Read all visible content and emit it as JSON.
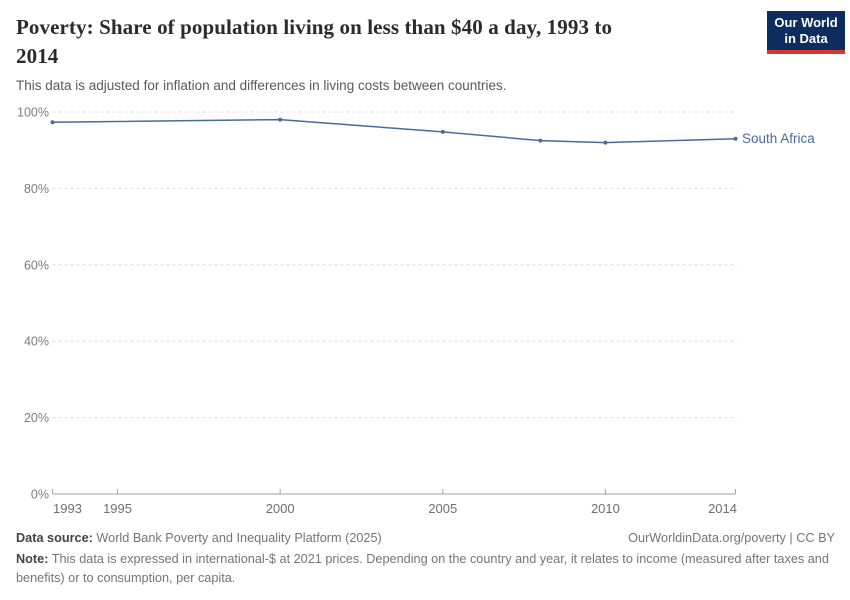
{
  "header": {
    "title": "Poverty: Share of population living on less than $40 a day, 1993 to\n2014",
    "subtitle": "This data is adjusted for inflation and differences in living costs between countries.",
    "logo": {
      "line1": "Our World",
      "line2": "in Data",
      "bg_color": "#0c2d5e",
      "accent_color": "#d9362e"
    }
  },
  "chart_data": {
    "type": "line",
    "title": "Poverty: Share of population living on less than $40 a day, 1993 to 2014",
    "xlabel": "",
    "ylabel": "",
    "xlim": [
      1993,
      2014
    ],
    "ylim": [
      0,
      100
    ],
    "x_ticks": [
      1993,
      1995,
      2000,
      2005,
      2010,
      2014
    ],
    "y_ticks": [
      0,
      20,
      40,
      60,
      80,
      100
    ],
    "y_tick_suffix": "%",
    "grid": "horizontal-dashed",
    "legend_position": "end-of-line-label",
    "series": [
      {
        "name": "South Africa",
        "color": "#4c6a9c",
        "x": [
          1993,
          2000,
          2005,
          2008,
          2010,
          2014
        ],
        "values": [
          97.3,
          98.0,
          94.8,
          92.5,
          92.0,
          93.0
        ]
      }
    ],
    "axis_color": "#a3a3a3",
    "gridline_color": "#dcdcdc",
    "tick_label_color": "#757575"
  },
  "footer": {
    "source_label": "Data source:",
    "source_text": "World Bank Poverty and Inequality Platform (2025)",
    "cc_text": "OurWorldinData.org/poverty | CC BY",
    "note_label": "Note:",
    "note_text": "This data is expressed in international-$ at 2021 prices. Depending on the country and year, it relates to income (measured after taxes and benefits) or to consumption, per capita."
  }
}
